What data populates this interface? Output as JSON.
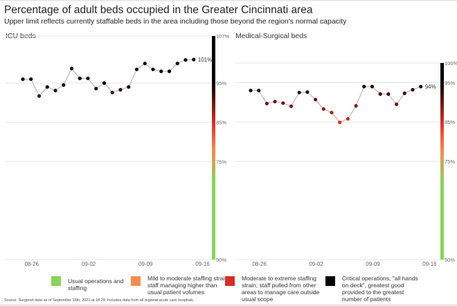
{
  "header": {
    "title": "Percentage of adult beds occupied in the Greater Cincinnati area",
    "subtitle": "Upper limit reflects currently staffable beds in the area including those beyond the region's normal capacity"
  },
  "chart_data": [
    {
      "type": "line",
      "title": "ICU beds",
      "xlabel": "",
      "ylabel": "",
      "x": [
        "08-25",
        "08-26",
        "08-27",
        "08-28",
        "08-29",
        "08-30",
        "08-31",
        "09-01",
        "09-02",
        "09-03",
        "09-04",
        "09-05",
        "09-06",
        "09-07",
        "09-08",
        "09-09",
        "09-10",
        "09-11",
        "09-12",
        "09-13",
        "09-14",
        "09-15"
      ],
      "values": [
        96.0,
        96.0,
        91.7,
        94.0,
        93.1,
        94.5,
        98.7,
        96.2,
        96.2,
        93.6,
        95.0,
        92.6,
        93.3,
        94.0,
        98.5,
        100.0,
        98.5,
        98.0,
        98.0,
        100.0,
        100.9,
        101
      ],
      "x_ticks": [
        "08-26",
        "09-02",
        "09-09",
        "09-16"
      ],
      "y_ticks": [
        "107%",
        "95%",
        "85%",
        "75%",
        "50%"
      ],
      "y_tick_values": [
        107,
        95,
        85,
        75,
        50
      ],
      "ylim": [
        50,
        107
      ],
      "end_label": "101%",
      "grid": true
    },
    {
      "type": "line",
      "title": "Medical-Surgical beds",
      "xlabel": "",
      "ylabel": "",
      "x": [
        "08-25",
        "08-26",
        "08-27",
        "08-28",
        "08-29",
        "08-30",
        "08-31",
        "09-01",
        "09-02",
        "09-03",
        "09-04",
        "09-05",
        "09-06",
        "09-07",
        "09-08",
        "09-09",
        "09-10",
        "09-11",
        "09-12",
        "09-13",
        "09-14",
        "09-15"
      ],
      "values": [
        93.0,
        93.0,
        89.7,
        90.2,
        89.8,
        89.0,
        92.5,
        92.6,
        90.7,
        88.3,
        87.4,
        84.9,
        85.8,
        89.1,
        94.0,
        94.0,
        92.1,
        92.1,
        89.5,
        92.3,
        93.2,
        94
      ],
      "x_ticks": [
        "08-26",
        "09-02",
        "09-09",
        "09-16"
      ],
      "y_ticks": [
        "100%",
        "95%",
        "85%",
        "75%",
        "50%"
      ],
      "y_tick_values": [
        100,
        95,
        85,
        75,
        50
      ],
      "ylim": [
        50,
        100
      ],
      "end_label": "94%",
      "grid": true
    }
  ],
  "colors": {
    "usual": "#8cd15a",
    "mild": "#f48c52",
    "moderate": "#d32f27",
    "critical": "#000000",
    "line": "#aaaaaa",
    "grid": "#e6e6e6"
  },
  "legend": [
    {
      "label": "Usual operations and staffing",
      "color": "#8cd15a"
    },
    {
      "label": "Mild to moderate staffing strain; staff managing higher than usual patient volumes",
      "color": "#f48c52"
    },
    {
      "label": "Moderate to extreme staffing strain; staff pulled from other areas to manage care outside usual scope",
      "color": "#d32f27"
    },
    {
      "label": "Critical operations, \"all hands on deck\", greatest good provided to the greatest number of patients",
      "color": "#000000"
    }
  ],
  "source": "Source: Surgenet data as of September 15th, 2021 at 18:29.  Includes data from all regional acute care hospitals."
}
